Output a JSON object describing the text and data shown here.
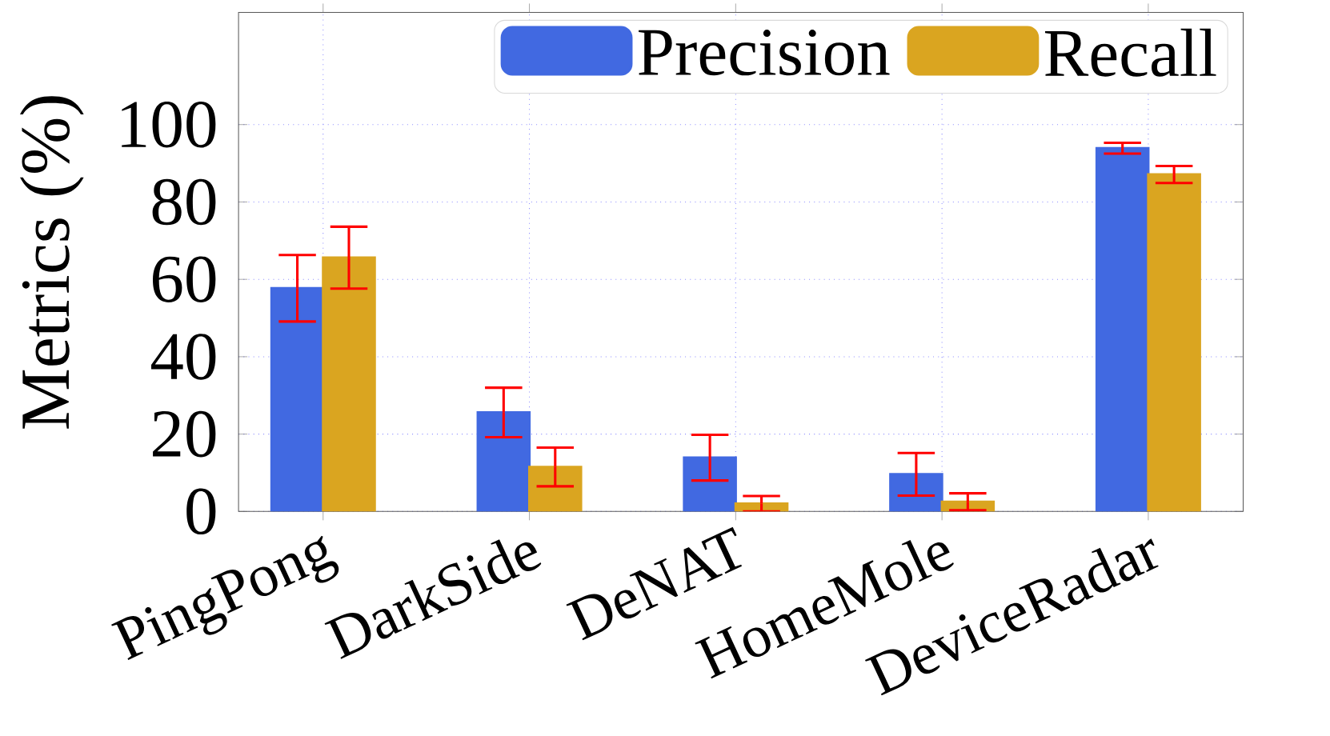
{
  "chart_data": {
    "type": "bar",
    "ylabel": "Metrics (%)",
    "categories": [
      "PingPong",
      "DarkSide",
      "DeNAT",
      "HomeMole",
      "DeviceRadar"
    ],
    "series": [
      {
        "name": "Precision",
        "color": "#4169e1",
        "values": [
          57.7,
          25.6,
          13.9,
          9.6,
          93.9
        ],
        "errors": [
          8.6,
          6.4,
          5.9,
          5.5,
          1.4
        ]
      },
      {
        "name": "Recall",
        "color": "#daa520",
        "values": [
          65.6,
          11.5,
          2,
          2.5,
          87.1
        ],
        "errors": [
          8,
          5,
          2,
          2.2,
          2.2
        ]
      }
    ],
    "ylim": [
      0,
      129
    ],
    "yticks": [
      0,
      20,
      40,
      60,
      80,
      100
    ],
    "grid": true,
    "legend": "top right"
  }
}
